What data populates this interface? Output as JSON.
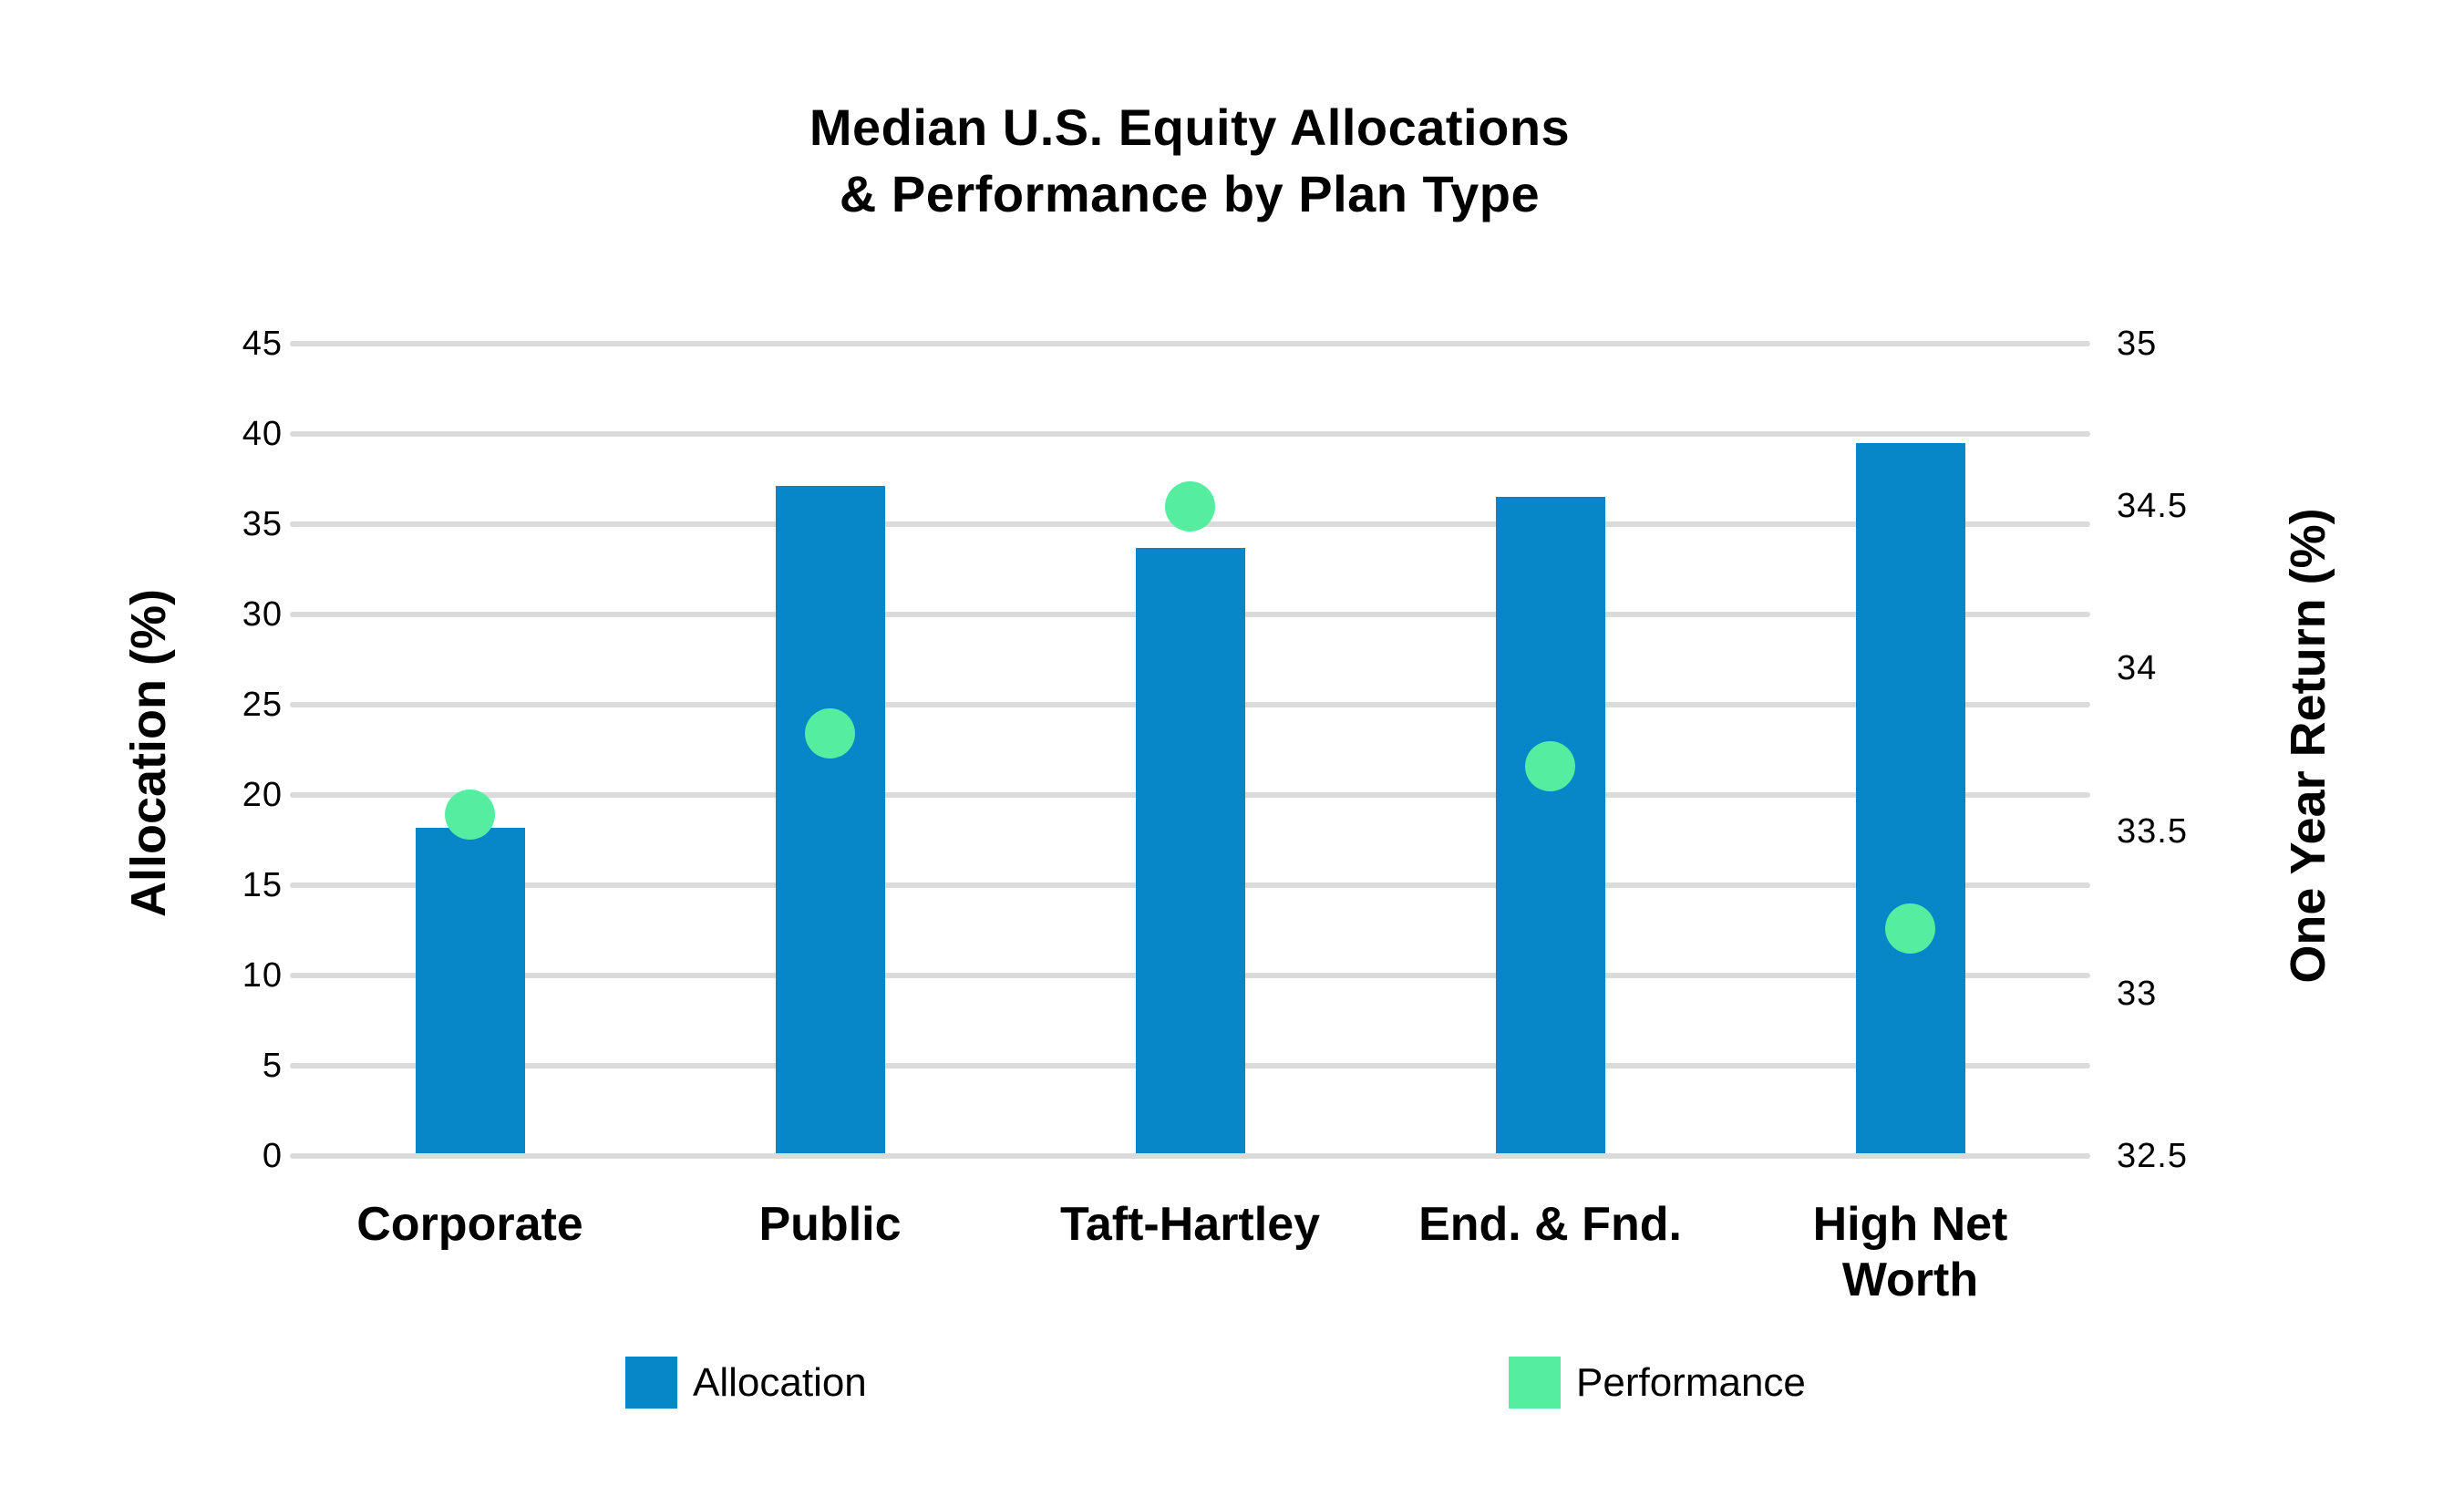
{
  "title": {
    "line1": "Median U.S. Equity Allocations",
    "line2": "& Performance by Plan Type"
  },
  "colors": {
    "bar": "#0787C8",
    "dot": "#55EDA0",
    "gridline": "#DBDBDB",
    "text": "#000000",
    "background": "#FFFFFF"
  },
  "legend": [
    {
      "label": "Allocation",
      "color": "#0787C8",
      "shape": "square"
    },
    {
      "label": "Performance",
      "color": "#55EDA0",
      "shape": "square"
    }
  ],
  "chart_data": {
    "type": "combo-bar-scatter-dual-axis",
    "title": "Median U.S. Equity Allocations & Performance by Plan Type",
    "categories": [
      "Corporate",
      "Public",
      "Taft-Hartley",
      "End. & Fnd.",
      "High Net Worth"
    ],
    "x_label_lines": [
      [
        "Corporate"
      ],
      [
        "Public"
      ],
      [
        "Taft-Hartley"
      ],
      [
        "End. & Fnd."
      ],
      [
        "High Net",
        "Worth"
      ]
    ],
    "series": [
      {
        "name": "Allocation",
        "type": "bar",
        "axis": "left",
        "color": "#0787C8",
        "values": [
          18.2,
          37.1,
          33.7,
          36.5,
          39.5
        ]
      },
      {
        "name": "Performance",
        "type": "scatter",
        "axis": "right",
        "color": "#55EDA0",
        "values": [
          33.55,
          33.8,
          34.5,
          33.7,
          33.2
        ]
      }
    ],
    "left_axis": {
      "label": "Allocation (%)",
      "min": 0,
      "max": 45,
      "ticks": [
        45,
        40,
        35,
        30,
        25,
        20,
        15,
        10,
        5,
        0
      ]
    },
    "right_axis": {
      "label": "One Year Return (%)",
      "min": 32.5,
      "max": 35,
      "ticks": [
        35,
        34.5,
        34,
        33.5,
        33,
        32.5
      ]
    },
    "grid": "horizontal",
    "legend_position": "bottom"
  }
}
